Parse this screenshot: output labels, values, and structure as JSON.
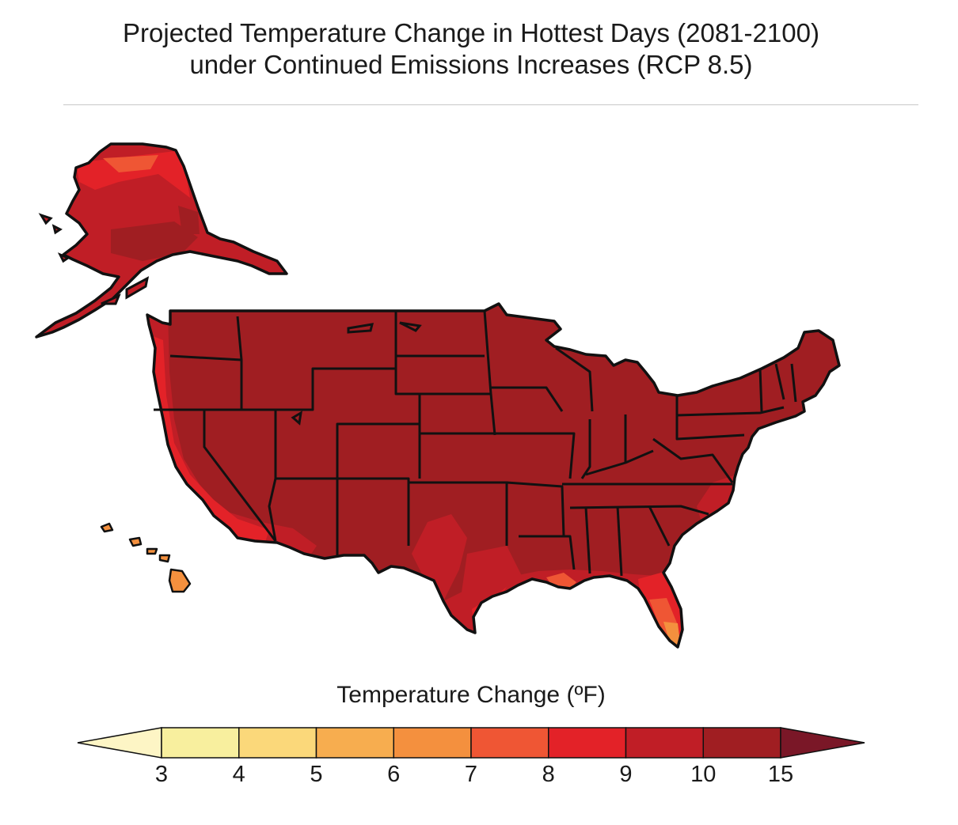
{
  "title": {
    "line1": "Projected Temperature Change in Hottest Days (2081-2100)",
    "line2": "under Continued Emissions Increases (RCP 8.5)"
  },
  "legend": {
    "title": "Temperature Change (ºF)",
    "ticks": [
      "3",
      "4",
      "5",
      "6",
      "7",
      "8",
      "9",
      "10",
      "15"
    ],
    "colors": [
      "#fdf5c5",
      "#f8ef9e",
      "#fbd87a",
      "#f7ad4f",
      "#f4903e",
      "#ef5634",
      "#e32228",
      "#c01e26",
      "#a01e22",
      "#7a1727"
    ],
    "extend": "both"
  },
  "map": {
    "regions": [
      {
        "name": "Alaska",
        "class": "10-15",
        "color": "#a01e22"
      },
      {
        "name": "Contiguous US",
        "class": "10-15",
        "color": "#a01e22"
      },
      {
        "name": "Hawaii",
        "class": "6-7",
        "color": "#f4903e"
      }
    ],
    "coastal_colors": [
      "#c01e26",
      "#e32228",
      "#ef5634"
    ]
  }
}
